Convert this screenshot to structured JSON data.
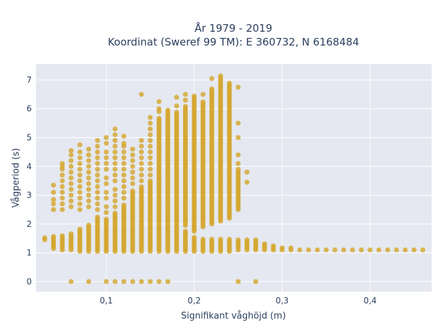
{
  "chart_data": {
    "type": "scatter",
    "title_line1": "År 1979 - 2019",
    "title_line2": "Koordinat (Sweref 99 TM): E 360732, N 6168484",
    "xlabel": "Signifikant våghöjd (m)",
    "ylabel": "Vågperiod (s)",
    "xlim": [
      0.02,
      0.47
    ],
    "ylim": [
      -0.35,
      7.55
    ],
    "x_ticks": [
      0.1,
      0.2,
      0.3,
      0.4
    ],
    "x_tick_labels": [
      "0,1",
      "0,2",
      "0,3",
      "0,4"
    ],
    "y_ticks": [
      0,
      1,
      2,
      3,
      4,
      5,
      6,
      7
    ],
    "y_tick_labels": [
      "0",
      "1",
      "2",
      "3",
      "4",
      "5",
      "6",
      "7"
    ],
    "grid": true,
    "marker_color": "#d4a52a",
    "plot_background": "#e5e8f0",
    "columns": [
      {
        "x": 0.03,
        "ymin": 1.45,
        "ymax": 1.55,
        "extra": []
      },
      {
        "x": 0.04,
        "ymin": 1.15,
        "ymax": 1.6,
        "extra": [
          2.5,
          2.7,
          2.85,
          3.1,
          3.35
        ]
      },
      {
        "x": 0.05,
        "ymin": 1.1,
        "ymax": 1.65,
        "extra": [
          2.5,
          2.7,
          2.9,
          3.1,
          3.3,
          3.5,
          3.7,
          3.9,
          4.0,
          4.1
        ]
      },
      {
        "x": 0.06,
        "ymin": 1.1,
        "ymax": 1.7,
        "extra": [
          0,
          2.6,
          2.8,
          3.0,
          3.2,
          3.4,
          3.6,
          3.8,
          4.0,
          4.2,
          4.4,
          4.55
        ]
      },
      {
        "x": 0.07,
        "ymin": 1.05,
        "ymax": 1.85,
        "extra": [
          2.5,
          2.7,
          2.9,
          3.1,
          3.3,
          3.5,
          3.7,
          3.9,
          4.1,
          4.3,
          4.5,
          4.75
        ]
      },
      {
        "x": 0.08,
        "ymin": 1.05,
        "ymax": 2.0,
        "extra": [
          0,
          2.6,
          2.8,
          3.0,
          3.2,
          3.4,
          3.6,
          3.8,
          4.0,
          4.2,
          4.4,
          4.6
        ]
      },
      {
        "x": 0.09,
        "ymin": 1.05,
        "ymax": 2.3,
        "extra": [
          2.5,
          2.7,
          2.9,
          3.1,
          3.3,
          3.5,
          3.7,
          3.9,
          4.1,
          4.3,
          4.5,
          4.7,
          4.9
        ]
      },
      {
        "x": 0.1,
        "ymin": 1.05,
        "ymax": 2.2,
        "extra": [
          0,
          2.4,
          2.6,
          2.9,
          3.1,
          3.4,
          3.6,
          3.9,
          4.1,
          4.3,
          4.5,
          4.8,
          5.0
        ]
      },
      {
        "x": 0.11,
        "ymin": 1.05,
        "ymax": 2.4,
        "extra": [
          0,
          2.6,
          2.8,
          3.0,
          3.2,
          3.5,
          3.7,
          3.9,
          4.1,
          4.3,
          4.5,
          4.7,
          4.9,
          5.1,
          5.3
        ]
      },
      {
        "x": 0.12,
        "ymin": 1.05,
        "ymax": 2.7,
        "extra": [
          0,
          2.9,
          3.1,
          3.3,
          3.5,
          3.7,
          3.9,
          4.1,
          4.3,
          4.5,
          4.7,
          4.8,
          5.05
        ]
      },
      {
        "x": 0.13,
        "ymin": 1.05,
        "ymax": 3.2,
        "extra": [
          0,
          3.4,
          3.6,
          3.8,
          4.0,
          4.2,
          4.4,
          4.6
        ]
      },
      {
        "x": 0.14,
        "ymin": 1.05,
        "ymax": 3.3,
        "extra": [
          0,
          3.5,
          3.7,
          3.9,
          4.1,
          4.3,
          4.5,
          4.7,
          4.9,
          6.5
        ]
      },
      {
        "x": 0.15,
        "ymin": 1.05,
        "ymax": 3.5,
        "extra": [
          0,
          3.7,
          3.9,
          4.1,
          4.3,
          4.5,
          4.7,
          4.9,
          5.1,
          5.3,
          5.5,
          5.7
        ]
      },
      {
        "x": 0.16,
        "ymin": 1.05,
        "ymax": 5.7,
        "extra": [
          0,
          5.9,
          6.0,
          6.25
        ]
      },
      {
        "x": 0.17,
        "ymin": 1.05,
        "ymax": 5.95,
        "extra": [
          0
        ]
      },
      {
        "x": 0.18,
        "ymin": 1.05,
        "ymax": 5.9,
        "extra": [
          6.1,
          6.4
        ]
      },
      {
        "x": 0.19,
        "ymin": 1.05,
        "ymax": 1.75,
        "extra": [],
        "ymin2": 1.95,
        "ymax2": 6.1,
        "extra2": [
          6.3,
          6.5
        ]
      },
      {
        "x": 0.2,
        "ymin": 1.05,
        "ymax": 1.55,
        "extra": [],
        "ymin2": 1.75,
        "ymax2": 6.45,
        "extra2": []
      },
      {
        "x": 0.21,
        "ymin": 1.05,
        "ymax": 1.5,
        "extra": [],
        "ymin2": 1.9,
        "ymax2": 6.3,
        "extra2": [
          6.5
        ]
      },
      {
        "x": 0.22,
        "ymin": 1.05,
        "ymax": 1.5,
        "extra": [
          7.05
        ],
        "ymin2": 2.0,
        "ymax2": 6.7,
        "extra2": []
      },
      {
        "x": 0.23,
        "ymin": 1.05,
        "ymax": 1.5,
        "extra": [],
        "ymin2": 2.1,
        "ymax2": 7.2,
        "extra2": []
      },
      {
        "x": 0.24,
        "ymin": 1.05,
        "ymax": 1.5,
        "extra": [],
        "ymin2": 2.2,
        "ymax2": 6.9,
        "extra2": []
      },
      {
        "x": 0.25,
        "ymin": 1.1,
        "ymax": 1.45,
        "extra": [
          0,
          4.1,
          4.4,
          5.0,
          5.5,
          6.75
        ],
        "ymin2": 2.5,
        "ymax2": 3.9,
        "extra2": []
      },
      {
        "x": 0.26,
        "ymin": 1.1,
        "ymax": 1.45,
        "extra": [
          3.45,
          3.8
        ]
      },
      {
        "x": 0.27,
        "ymin": 1.1,
        "ymax": 1.45,
        "extra": [
          0
        ]
      },
      {
        "x": 0.28,
        "ymin": 1.1,
        "ymax": 1.35,
        "extra": []
      },
      {
        "x": 0.29,
        "ymin": 1.1,
        "ymax": 1.25,
        "extra": []
      },
      {
        "x": 0.3,
        "ymin": 1.1,
        "ymax": 1.2,
        "extra": []
      },
      {
        "x": 0.31,
        "ymin": 1.1,
        "ymax": 1.2,
        "extra": []
      },
      {
        "x": 0.32,
        "ymin": 1.1,
        "ymax": 1.15,
        "extra": []
      },
      {
        "x": 0.33,
        "ymin": 1.1,
        "ymax": 1.15,
        "extra": []
      },
      {
        "x": 0.34,
        "ymin": 1.1,
        "ymax": 1.15,
        "extra": []
      },
      {
        "x": 0.35,
        "ymin": 1.1,
        "ymax": 1.15,
        "extra": []
      },
      {
        "x": 0.36,
        "ymin": 1.1,
        "ymax": 1.15,
        "extra": []
      },
      {
        "x": 0.37,
        "ymin": 1.1,
        "ymax": 1.15,
        "extra": []
      },
      {
        "x": 0.38,
        "ymin": 1.1,
        "ymax": 1.15,
        "extra": []
      },
      {
        "x": 0.39,
        "ymin": 1.1,
        "ymax": 1.15,
        "extra": []
      },
      {
        "x": 0.4,
        "ymin": 1.1,
        "ymax": 1.15,
        "extra": []
      },
      {
        "x": 0.41,
        "ymin": 1.1,
        "ymax": 1.12,
        "extra": []
      },
      {
        "x": 0.42,
        "ymin": 1.1,
        "ymax": 1.12,
        "extra": []
      },
      {
        "x": 0.43,
        "ymin": 1.1,
        "ymax": 1.12,
        "extra": []
      },
      {
        "x": 0.44,
        "ymin": 1.1,
        "ymax": 1.12,
        "extra": []
      },
      {
        "x": 0.45,
        "ymin": 1.1,
        "ymax": 1.12,
        "extra": []
      },
      {
        "x": 0.46,
        "ymin": 1.1,
        "ymax": 1.12,
        "extra": []
      }
    ]
  }
}
